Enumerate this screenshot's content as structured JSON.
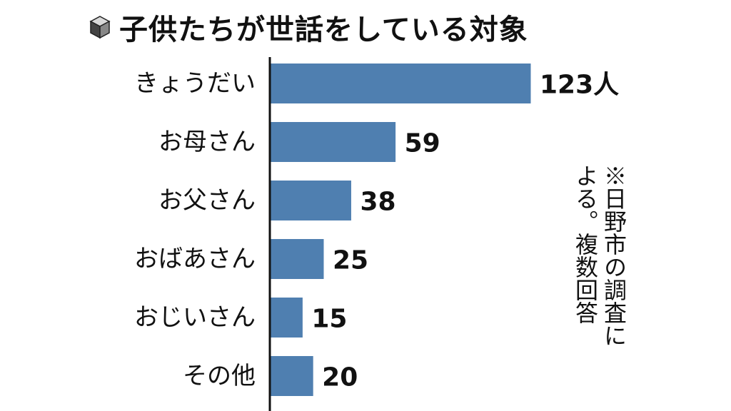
{
  "title": "子供たちが世話をしている対象",
  "icon": "cube-icon",
  "note_lines": [
    "※日野市の調査に",
    "よる。複数回答"
  ],
  "colors": {
    "bar": "#4f7fb0",
    "axis": "#111111",
    "text": "#111111"
  },
  "chart_data": {
    "type": "bar",
    "orientation": "horizontal",
    "title": "子供たちが世話をしている対象",
    "unit": "人",
    "categories": [
      "きょうだい",
      "お母さん",
      "お父さん",
      "おばあさん",
      "おじいさん",
      "その他"
    ],
    "values": [
      123,
      59,
      38,
      25,
      15,
      20
    ],
    "value_labels": [
      "123人",
      "59",
      "38",
      "25",
      "15",
      "20"
    ],
    "xlim": [
      0,
      123
    ],
    "grid": false,
    "legend": "none"
  }
}
